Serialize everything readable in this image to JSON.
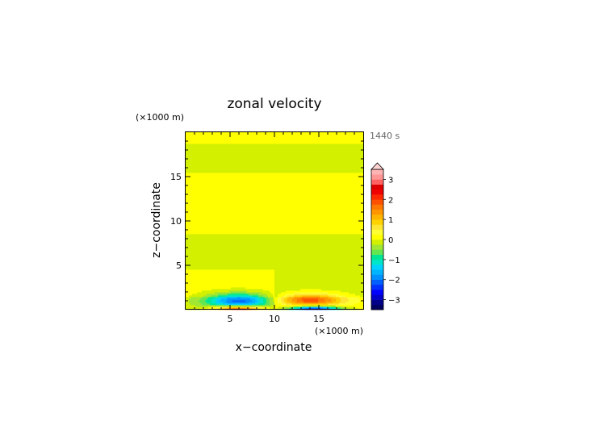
{
  "chart_data": {
    "type": "heatmap",
    "title": "zonal velocity",
    "xlabel": "x−coordinate",
    "ylabel": "z−coordinate",
    "x_unit": "(×1000 m)",
    "y_unit": "(×1000 m)",
    "time_label": "1440 s",
    "xlim": [
      0,
      20
    ],
    "ylim": [
      0,
      20
    ],
    "x_ticks": [
      5,
      10,
      15
    ],
    "y_ticks": [
      5,
      10,
      15
    ],
    "x_tick_labels": [
      "5",
      "10",
      "15"
    ],
    "y_tick_labels": [
      "5",
      "10",
      "15"
    ],
    "colorbar": {
      "levels": [
        -3.5,
        -3.25,
        -3,
        -2.75,
        -2.5,
        -2.25,
        -2,
        -1.75,
        -1.5,
        -1.25,
        -1,
        -0.75,
        -0.5,
        -0.25,
        0,
        0.25,
        0.5,
        0.75,
        1,
        1.25,
        1.5,
        1.75,
        2,
        2.25,
        2.5,
        2.75,
        3,
        3.25,
        3.5
      ],
      "colors": [
        "#000060",
        "#00008a",
        "#0000c8",
        "#0000ff",
        "#0030ff",
        "#0060ff",
        "#0090ff",
        "#00b4ff",
        "#00d2ff",
        "#00e6c8",
        "#00e696",
        "#64e650",
        "#a0e632",
        "#d2f000",
        "#ffff00",
        "#ffff32",
        "#ffe632",
        "#ffd200",
        "#ffb400",
        "#ff9600",
        "#ff7800",
        "#ff5000",
        "#ff2800",
        "#f00000",
        "#dc0000",
        "#ff6464",
        "#ff9696",
        "#ffb4b4"
      ],
      "tick_values": [
        3,
        2,
        1,
        0,
        -1,
        -2,
        -3
      ],
      "tick_labels": [
        "3",
        "2",
        "1",
        "0",
        "−1",
        "−2",
        "−3"
      ],
      "extend_max": true
    },
    "layers": [
      {
        "z": [
          0,
          1.5
        ],
        "left": -0.1,
        "right": 0.1
      },
      {
        "z": [
          1.5,
          4.5
        ],
        "left": 0.1,
        "right": -0.1
      },
      {
        "z": [
          4.5,
          8.5
        ],
        "left": -0.1,
        "right": -0.1
      },
      {
        "z": [
          8.5,
          15.5
        ],
        "left": 0.1,
        "right": 0.1
      },
      {
        "z": [
          15.5,
          18.8
        ],
        "left": -0.1,
        "right": -0.1
      },
      {
        "z": [
          18.8,
          20
        ],
        "left": 0.1,
        "right": 0.1
      }
    ],
    "features": [
      {
        "x": 6.0,
        "z": 1.0,
        "rx": 5.0,
        "rz": 1.2,
        "amp": -2.0
      },
      {
        "x": 14.0,
        "z": 1.1,
        "rx": 5.0,
        "rz": 1.0,
        "amp": 1.8
      },
      {
        "x": 6.0,
        "z": 0.1,
        "rx": 4.0,
        "rz": 0.5,
        "amp": 2.6
      },
      {
        "x": 14.5,
        "z": 0.1,
        "rx": 4.0,
        "rz": 0.5,
        "amp": -2.8
      }
    ]
  }
}
